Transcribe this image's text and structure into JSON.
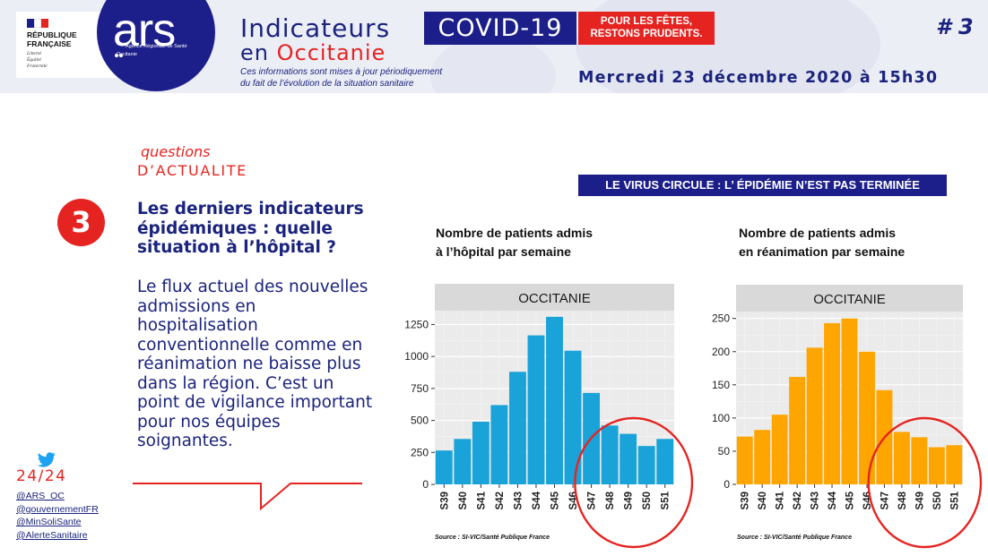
{
  "header": {
    "republic": {
      "name": "RÉPUBLIQUE\nFRANÇAISE",
      "motto": "Liberté\nÉgalité\nFraternité",
      "flag_colors": [
        "#1c1f8a",
        "#ffffff",
        "#e52421"
      ]
    },
    "agency": {
      "logo_text": "ars",
      "full_name": "Agence Régionale de Santé",
      "region": "Occitanie"
    },
    "title_line1": "Indicateurs",
    "title_line2_prefix": "en ",
    "title_line2_region": "Occitanie",
    "covid_badge": "COVID-19",
    "holiday_badge": "POUR LES FÊTES,\nRESTONS PRUDENTS.",
    "subtitle": "Ces informations sont mises à jour périodiquement\ndu fait de l’évolution de la situation sanitaire",
    "date": "Mercredi 23 décembre 2020 à 15h30",
    "issue": "# 3"
  },
  "question": {
    "label": "questions",
    "category": "D’ACTUALITE",
    "number": "3",
    "title": "Les derniers indicateurs épidémiques : quelle situation à l’hôpital ?",
    "body": "Le flux actuel des nouvelles admissions en hospitalisation conventionnelle comme en réanimation ne baisse plus dans la région. C’est un point de vigilance important pour nos équipes soignantes."
  },
  "social": {
    "icon": "twitter-icon",
    "availability": "24/24",
    "handles": [
      "@ARS_OC",
      "@gouvernementFR",
      "@MinSoliSante",
      "@AlerteSanitaire"
    ]
  },
  "banner": "LE VIRUS CIRCULE : L’ ÉPIDÉMIE N’EST PAS TERMINÉE",
  "colors": {
    "navy": "#1c1f8a",
    "red": "#e52421",
    "hospital_bar": "#1aa3d9",
    "icu_bar": "#ffa500",
    "panel_bg": "#ebebeb",
    "strip_bg": "#d9d9d9"
  },
  "chart_data": [
    {
      "type": "bar",
      "title": "Nombre de patients admis\nà l’hôpital par semaine",
      "panel_label": "OCCITANIE",
      "categories": [
        "S39",
        "S40",
        "S41",
        "S42",
        "S43",
        "S44",
        "S45",
        "S46",
        "S47",
        "S48",
        "S49",
        "S50",
        "S51"
      ],
      "values": [
        265,
        355,
        490,
        620,
        880,
        1165,
        1310,
        1045,
        715,
        460,
        395,
        300,
        355
      ],
      "yticks": [
        0,
        250,
        500,
        750,
        1000,
        1250
      ],
      "ylim": [
        0,
        1330
      ],
      "grid": true,
      "highlight": [
        "S47",
        "S48",
        "S49",
        "S50",
        "S51"
      ],
      "source": "Source : SI-VIC/Santé Publique France"
    },
    {
      "type": "bar",
      "title": "Nombre de patients admis\nen réanimation par semaine",
      "panel_label": "OCCITANIE",
      "categories": [
        "S39",
        "S40",
        "S41",
        "S42",
        "S43",
        "S44",
        "S45",
        "S46",
        "S47",
        "S48",
        "S49",
        "S50",
        "S51"
      ],
      "values": [
        72,
        82,
        105,
        162,
        206,
        243,
        250,
        200,
        142,
        79,
        71,
        56,
        59
      ],
      "yticks": [
        0,
        50,
        100,
        150,
        200,
        250
      ],
      "ylim": [
        0,
        255
      ],
      "grid": true,
      "highlight": [
        "S47",
        "S48",
        "S49",
        "S50",
        "S51"
      ],
      "source": "Source : SI-VIC/Santé Publique France"
    }
  ]
}
